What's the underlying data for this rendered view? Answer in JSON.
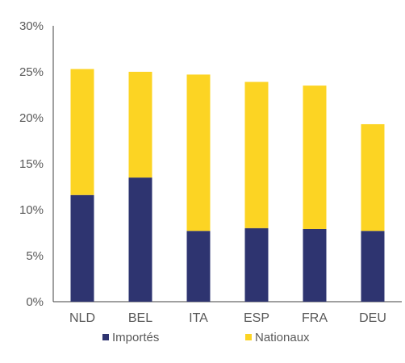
{
  "chart_data": {
    "type": "bar",
    "stacked": true,
    "title": "",
    "xlabel": "",
    "ylabel": "",
    "categories": [
      "NLD",
      "BEL",
      "ITA",
      "ESP",
      "FRA",
      "DEU"
    ],
    "series": [
      {
        "name": "Importés",
        "color": "#2e3470",
        "values": [
          11.6,
          13.5,
          7.7,
          8.0,
          7.9,
          7.7
        ]
      },
      {
        "name": "Nationaux",
        "color": "#fcd423",
        "values": [
          13.7,
          11.5,
          17.0,
          15.9,
          15.6,
          11.6
        ]
      }
    ],
    "ylim": [
      0,
      30
    ],
    "yticks": [
      0,
      5,
      10,
      15,
      20,
      25,
      30
    ],
    "ytick_labels": [
      "0%",
      "5%",
      "10%",
      "15%",
      "20%",
      "25%",
      "30%"
    ],
    "grid": false,
    "legend_position": "bottom"
  }
}
